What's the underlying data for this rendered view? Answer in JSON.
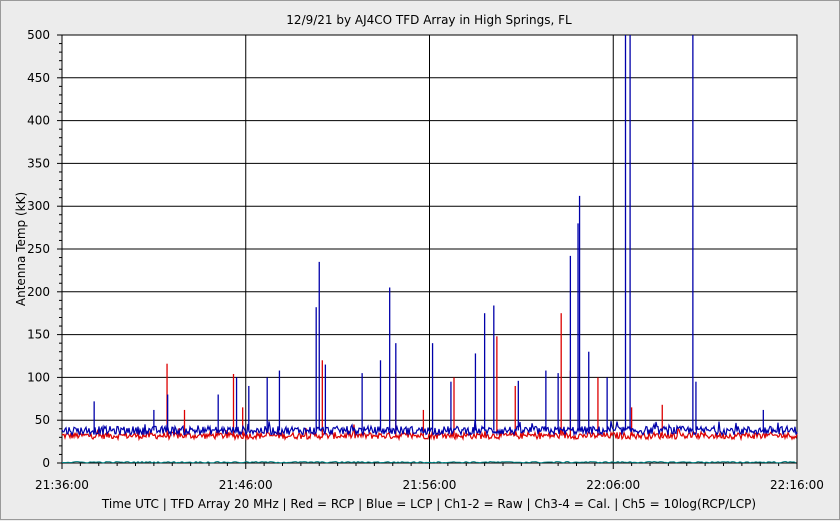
{
  "chart_data": {
    "type": "line",
    "title": "12/9/21  by  AJ4CO TFD Array  in  High Springs, FL",
    "ylabel": "Antenna Temp (kK)",
    "xlabel": "Time UTC | TFD Array 20 MHz | Red = RCP | Blue = LCP | Ch1-2 = Raw | Ch3-4 = Cal. | Ch5 = 10log(RCP/LCP)",
    "ylim": [
      0,
      500
    ],
    "yticks": [
      0,
      50,
      100,
      150,
      200,
      250,
      300,
      350,
      400,
      450,
      500
    ],
    "xticks": [
      "21:36:00",
      "21:46:00",
      "21:56:00",
      "22:06:00",
      "22:16:00"
    ],
    "grid": true,
    "colors": {
      "rcp": "#dd0000",
      "lcp": "#0000aa",
      "ratio": "#008080"
    },
    "series": [
      {
        "name": "RCP",
        "baseline": 32,
        "bursts": [
          [
            "21:41:43",
            116
          ],
          [
            "21:42:40",
            62
          ],
          [
            "21:45:20",
            104
          ],
          [
            "21:45:50",
            65
          ],
          [
            "21:50:10",
            120
          ],
          [
            "21:54:10",
            105
          ],
          [
            "21:55:40",
            62
          ],
          [
            "21:57:20",
            100
          ],
          [
            "21:59:40",
            148
          ],
          [
            "22:00:40",
            90
          ],
          [
            "22:03:10",
            175
          ],
          [
            "22:03:40",
            108
          ],
          [
            "22:05:10",
            100
          ],
          [
            "22:07:00",
            65
          ],
          [
            "22:08:40",
            68
          ]
        ]
      },
      {
        "name": "LCP",
        "baseline": 38,
        "bursts": [
          [
            "21:37:45",
            72
          ],
          [
            "21:41:00",
            62
          ],
          [
            "21:41:45",
            80
          ],
          [
            "21:44:30",
            80
          ],
          [
            "21:45:30",
            100
          ],
          [
            "21:46:10",
            90
          ],
          [
            "21:47:10",
            100
          ],
          [
            "21:47:50",
            108
          ],
          [
            "21:49:50",
            182
          ],
          [
            "21:50:00",
            235
          ],
          [
            "21:50:20",
            115
          ],
          [
            "21:52:20",
            105
          ],
          [
            "21:53:20",
            120
          ],
          [
            "21:53:50",
            205
          ],
          [
            "21:54:10",
            140
          ],
          [
            "21:56:10",
            140
          ],
          [
            "21:57:10",
            95
          ],
          [
            "21:58:30",
            128
          ],
          [
            "21:59:00",
            175
          ],
          [
            "21:59:30",
            184
          ],
          [
            "22:00:50",
            96
          ],
          [
            "22:02:20",
            108
          ],
          [
            "22:03:00",
            105
          ],
          [
            "22:03:40",
            242
          ],
          [
            "22:04:05",
            280
          ],
          [
            "22:04:10",
            312
          ],
          [
            "22:04:40",
            130
          ],
          [
            "22:05:40",
            100
          ],
          [
            "22:06:40",
            500
          ],
          [
            "22:06:55",
            500
          ],
          [
            "22:10:20",
            500
          ],
          [
            "22:10:30",
            95
          ],
          [
            "22:14:10",
            62
          ]
        ]
      },
      {
        "name": "Ch5",
        "baseline": 1
      }
    ]
  }
}
